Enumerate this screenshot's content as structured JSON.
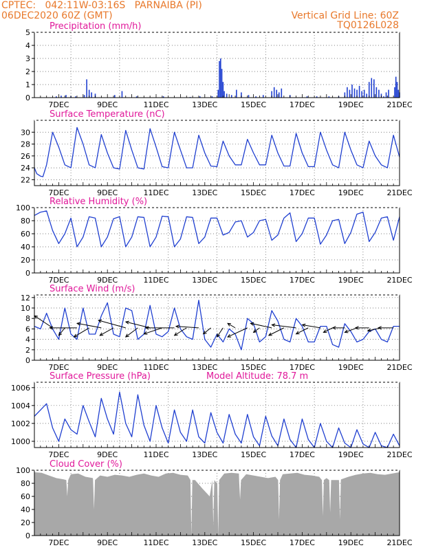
{
  "header": {
    "line1_left": "CPTEC:   042:11W-03:16S   PARNAIBA (PI)",
    "line2_left": "06DEC2020 60Z (GMT)",
    "line2_right": "Vertical Grid Line: 60Z",
    "line3_right": "TQ0126L028"
  },
  "x_axis": {
    "ticks": [
      {
        "day": 7,
        "label": "7DEC"
      },
      {
        "day": 9,
        "label": "9DEC"
      },
      {
        "day": 11,
        "label": "11DEC"
      },
      {
        "day": 13,
        "label": "13DEC"
      },
      {
        "day": 15,
        "label": "15DEC"
      },
      {
        "day": 17,
        "label": "17DEC"
      },
      {
        "day": 19,
        "label": "19DEC"
      },
      {
        "day": 21,
        "label": "21DEC"
      }
    ],
    "start_day": 6.0,
    "end_day": 21.0
  },
  "colors": {
    "header": "#e8782a",
    "title": "#e0189a",
    "line": "#1f3fd0",
    "bar": "#1f3fd0",
    "cloud": "#a8a8a8",
    "arrow": "#000000"
  },
  "chart_data": [
    {
      "type": "bar",
      "title": "Precipitation (mm/h)",
      "ylim": [
        0,
        5
      ],
      "yticks": [
        0,
        1,
        2,
        3,
        4,
        5
      ],
      "x": [
        6.9,
        7.1,
        7.3,
        7.5,
        7.7,
        8.05,
        8.15,
        8.25,
        8.35,
        8.5,
        9.3,
        9.6,
        10.2,
        11.3,
        12.4,
        12.8,
        13.3,
        13.55,
        13.6,
        13.65,
        13.7,
        13.75,
        13.8,
        13.9,
        14.1,
        14.3,
        14.5,
        14.8,
        15.1,
        15.4,
        15.75,
        15.85,
        15.95,
        16.05,
        16.15,
        16.5,
        17.2,
        17.6,
        18.1,
        18.5,
        18.75,
        18.85,
        18.95,
        19.05,
        19.15,
        19.25,
        19.35,
        19.45,
        19.55,
        19.65,
        19.75,
        19.85,
        19.95,
        20.05,
        20.15,
        20.25,
        20.35,
        20.45,
        20.55,
        20.8,
        20.85,
        20.9,
        20.95,
        21.0
      ],
      "values": [
        0.1,
        0.15,
        0.2,
        0.1,
        0.1,
        0.2,
        1.4,
        0.6,
        0.4,
        0.3,
        0.2,
        0.5,
        0.1,
        0.1,
        0.05,
        0.1,
        0.1,
        0.6,
        2.8,
        3.0,
        2.2,
        1.2,
        0.5,
        0.3,
        0.2,
        0.6,
        0.4,
        0.2,
        0.1,
        0.2,
        0.5,
        0.8,
        0.6,
        0.4,
        0.7,
        0.2,
        0.1,
        0.1,
        0.1,
        0.1,
        0.4,
        0.8,
        0.6,
        1.0,
        0.7,
        0.6,
        0.9,
        0.5,
        0.6,
        0.3,
        1.2,
        1.5,
        1.4,
        0.8,
        0.6,
        0.3,
        0.1,
        0.4,
        0.6,
        0.8,
        1.6,
        1.2,
        0.6,
        0.4
      ]
    },
    {
      "type": "line",
      "title": "Surface Temperature (nC)",
      "ylim": [
        21,
        32
      ],
      "yticks": [
        22,
        24,
        26,
        28,
        30
      ],
      "x": [
        6.0,
        6.1,
        6.25,
        6.35,
        6.5,
        6.75,
        7.0,
        7.25,
        7.5,
        7.75,
        8.0,
        8.25,
        8.5,
        8.75,
        9.0,
        9.25,
        9.5,
        9.75,
        10.0,
        10.25,
        10.5,
        10.75,
        11.0,
        11.25,
        11.5,
        11.75,
        12.0,
        12.25,
        12.5,
        12.75,
        13.0,
        13.25,
        13.5,
        13.75,
        14.0,
        14.25,
        14.5,
        14.75,
        15.0,
        15.25,
        15.5,
        15.75,
        16.0,
        16.25,
        16.5,
        16.75,
        17.0,
        17.25,
        17.5,
        17.75,
        18.0,
        18.25,
        18.5,
        18.75,
        19.0,
        19.25,
        19.5,
        19.75,
        20.0,
        20.25,
        20.5,
        20.75,
        21.0
      ],
      "values": [
        24.0,
        23.0,
        22.6,
        22.5,
        24.5,
        30.0,
        27.5,
        24.5,
        24.0,
        30.8,
        28.0,
        24.5,
        24.0,
        29.6,
        26.5,
        24.0,
        23.8,
        30.3,
        27.0,
        24.0,
        23.8,
        30.6,
        27.5,
        24.2,
        24.0,
        30.0,
        27.0,
        24.0,
        24.0,
        29.5,
        26.5,
        24.3,
        24.2,
        28.5,
        26.0,
        24.5,
        24.5,
        28.8,
        26.5,
        24.5,
        24.5,
        29.5,
        26.5,
        24.3,
        24.3,
        29.8,
        26.5,
        24.2,
        24.2,
        30.0,
        27.0,
        24.5,
        24.0,
        30.0,
        27.0,
        24.5,
        24.0,
        28.5,
        26.0,
        24.5,
        24.0,
        29.5,
        25.8
      ]
    },
    {
      "type": "line",
      "title": "Relative Humidity (%)",
      "ylim": [
        0,
        100
      ],
      "yticks": [
        0,
        20,
        40,
        60,
        80,
        100
      ],
      "x": [
        6.0,
        6.25,
        6.5,
        6.75,
        7.0,
        7.25,
        7.5,
        7.75,
        8.0,
        8.25,
        8.5,
        8.75,
        9.0,
        9.25,
        9.5,
        9.75,
        10.0,
        10.25,
        10.5,
        10.75,
        11.0,
        11.25,
        11.5,
        11.75,
        12.0,
        12.25,
        12.5,
        12.75,
        13.0,
        13.25,
        13.5,
        13.75,
        14.0,
        14.25,
        14.5,
        14.75,
        15.0,
        15.25,
        15.5,
        15.75,
        16.0,
        16.25,
        16.5,
        16.75,
        17.0,
        17.25,
        17.5,
        17.75,
        18.0,
        18.25,
        18.5,
        18.75,
        19.0,
        19.25,
        19.5,
        19.75,
        20.0,
        20.25,
        20.5,
        20.75,
        21.0
      ],
      "values": [
        88,
        93,
        95,
        65,
        45,
        60,
        84,
        40,
        55,
        86,
        84,
        40,
        55,
        83,
        86,
        40,
        55,
        86,
        85,
        40,
        55,
        87,
        86,
        40,
        52,
        86,
        85,
        45,
        55,
        84,
        84,
        58,
        62,
        78,
        80,
        55,
        62,
        80,
        82,
        50,
        58,
        84,
        92,
        48,
        60,
        84,
        84,
        44,
        58,
        80,
        82,
        45,
        62,
        90,
        93,
        48,
        62,
        84,
        86,
        50,
        86
      ]
    },
    {
      "type": "line",
      "title": "Surface Wind (m/s)",
      "ylim": [
        0,
        12.5
      ],
      "yticks": [
        0,
        2,
        4,
        6,
        8,
        10,
        12
      ],
      "x": [
        6.0,
        6.25,
        6.5,
        6.75,
        7.0,
        7.25,
        7.5,
        7.75,
        8.0,
        8.25,
        8.5,
        8.75,
        9.0,
        9.25,
        9.5,
        9.75,
        10.0,
        10.25,
        10.5,
        10.75,
        11.0,
        11.25,
        11.5,
        11.75,
        12.0,
        12.25,
        12.5,
        12.75,
        13.0,
        13.25,
        13.5,
        13.75,
        14.0,
        14.25,
        14.5,
        14.75,
        15.0,
        15.25,
        15.5,
        15.75,
        16.0,
        16.25,
        16.5,
        16.75,
        17.0,
        17.25,
        17.5,
        17.75,
        18.0,
        18.25,
        18.5,
        18.75,
        19.0,
        19.25,
        19.5,
        19.75,
        20.0,
        20.25,
        20.5,
        20.75,
        21.0
      ],
      "values": [
        6.5,
        6.0,
        9.0,
        6.0,
        4.0,
        10.0,
        5.0,
        4.0,
        10.0,
        5.0,
        5.0,
        8.5,
        11.0,
        5.0,
        4.5,
        10.0,
        9.5,
        4.0,
        5.0,
        10.5,
        5.0,
        4.5,
        5.5,
        10.0,
        6.0,
        4.5,
        4.0,
        11.5,
        4.0,
        2.5,
        5.0,
        3.5,
        6.0,
        5.0,
        2.0,
        8.0,
        7.0,
        3.5,
        4.5,
        9.5,
        7.5,
        4.0,
        3.5,
        8.0,
        6.5,
        3.5,
        3.5,
        6.5,
        6.5,
        3.0,
        2.5,
        7.0,
        5.5,
        3.5,
        4.0,
        5.5,
        6.0,
        4.0,
        3.5,
        6.5,
        6.5
      ]
    },
    {
      "type": "line",
      "title": "Surface Pressure (hPa)",
      "annotation": "Model Altitude: 78.7 m",
      "ylim": [
        999.3,
        1006.6
      ],
      "yticks": [
        1000,
        1002,
        1004,
        1006
      ],
      "x": [
        6.0,
        6.25,
        6.5,
        6.75,
        7.0,
        7.25,
        7.5,
        7.75,
        8.0,
        8.25,
        8.5,
        8.75,
        9.0,
        9.25,
        9.5,
        9.75,
        10.0,
        10.25,
        10.5,
        10.75,
        11.0,
        11.25,
        11.5,
        11.75,
        12.0,
        12.25,
        12.5,
        12.75,
        13.0,
        13.25,
        13.5,
        13.75,
        14.0,
        14.25,
        14.5,
        14.75,
        15.0,
        15.25,
        15.5,
        15.75,
        16.0,
        16.25,
        16.5,
        16.75,
        17.0,
        17.25,
        17.5,
        17.75,
        18.0,
        18.25,
        18.5,
        18.75,
        19.0,
        19.25,
        19.5,
        19.75,
        20.0,
        20.25,
        20.5,
        20.75,
        21.0
      ],
      "values": [
        1002.8,
        1003.5,
        1004.2,
        1001.5,
        1000.0,
        1002.5,
        1001.3,
        1000.8,
        1004.0,
        1002.2,
        1000.5,
        1004.8,
        1002.5,
        1000.8,
        1005.5,
        1002.0,
        1000.5,
        1005.2,
        1001.8,
        1000.0,
        1004.0,
        1001.5,
        999.8,
        1003.5,
        1001.0,
        1000.0,
        1003.5,
        1000.5,
        999.8,
        1003.2,
        1001.0,
        999.8,
        1003.0,
        1000.8,
        999.8,
        1003.0,
        1000.5,
        999.5,
        1002.8,
        1000.6,
        999.5,
        1002.5,
        1000.2,
        999.3,
        1002.5,
        1000.2,
        999.3,
        1002.0,
        1000.0,
        999.3,
        1001.5,
        999.8,
        999.3,
        1001.3,
        999.7,
        999.3,
        1001.0,
        999.5,
        999.3,
        1000.8,
        999.5
      ]
    },
    {
      "type": "area",
      "title": "Cloud Cover (%)",
      "ylim": [
        0,
        100
      ],
      "yticks": [
        0,
        20,
        40,
        60,
        80,
        100
      ],
      "x": [
        6.0,
        6.3,
        6.6,
        6.9,
        7.2,
        7.5,
        7.8,
        8.1,
        8.4,
        8.7,
        9.0,
        9.3,
        9.6,
        9.9,
        10.2,
        10.5,
        10.8,
        11.1,
        11.4,
        11.7,
        12.0,
        12.3,
        12.6,
        12.9,
        13.2,
        13.5,
        13.8,
        14.1,
        14.4,
        14.7,
        15.0,
        15.3,
        15.6,
        15.9,
        16.2,
        16.5,
        16.8,
        17.1,
        17.4,
        17.7,
        18.0,
        18.3,
        18.6,
        18.9,
        19.2,
        19.5,
        19.8,
        20.1,
        20.4,
        20.7,
        21.0
      ],
      "values": [
        97,
        96,
        92,
        88,
        86,
        94,
        95,
        90,
        88,
        92,
        90,
        93,
        92,
        90,
        93,
        95,
        92,
        90,
        95,
        96,
        93,
        92,
        85,
        72,
        60,
        80,
        95,
        96,
        95,
        94,
        92,
        90,
        88,
        90,
        94,
        95,
        96,
        93,
        92,
        90,
        88,
        85,
        86,
        90,
        93,
        95,
        96,
        94,
        93,
        95,
        97
      ],
      "dips_x": [
        7.35,
        8.45,
        12.45,
        13.35,
        13.55,
        14.45,
        16.05,
        17.85,
        18.15,
        18.55
      ],
      "dips_values": [
        60,
        40,
        0,
        15,
        0,
        55,
        25,
        30,
        35,
        25
      ]
    }
  ],
  "wind_vectors": {
    "x": [
      6.75,
      7.25,
      7.75,
      8.25,
      8.75,
      9.25,
      9.75,
      10.25,
      10.75,
      11.25,
      11.75,
      12.25,
      12.75,
      13.25,
      13.75,
      14.25,
      14.75,
      15.25,
      15.75,
      16.25,
      16.75,
      17.25,
      17.75,
      18.25,
      18.75,
      19.25,
      19.75,
      20.25,
      20.75
    ],
    "u": [
      -1.2,
      -0.4,
      -1.8,
      -1.0,
      -1.6,
      -0.9,
      -1.8,
      -0.8,
      -1.6,
      -1.2,
      -1.9,
      -0.8,
      -1.5,
      -0.5,
      -0.4,
      -0.5,
      -1.3,
      -0.4,
      -1.4,
      -1.0,
      -1.6,
      -0.8,
      -1.2,
      -0.6,
      -0.8,
      -0.8,
      -0.9,
      -0.9,
      -1.0
    ],
    "v": [
      0.8,
      -0.5,
      0.0,
      -0.6,
      0.3,
      -0.5,
      0.5,
      -0.6,
      0.4,
      -0.4,
      0.0,
      -0.5,
      0.1,
      -0.4,
      -0.6,
      0.3,
      -0.6,
      -0.3,
      0.3,
      -0.5,
      0.2,
      -0.4,
      0.2,
      -0.3,
      0.0,
      -0.3,
      0.0,
      -0.2,
      0.0
    ]
  }
}
